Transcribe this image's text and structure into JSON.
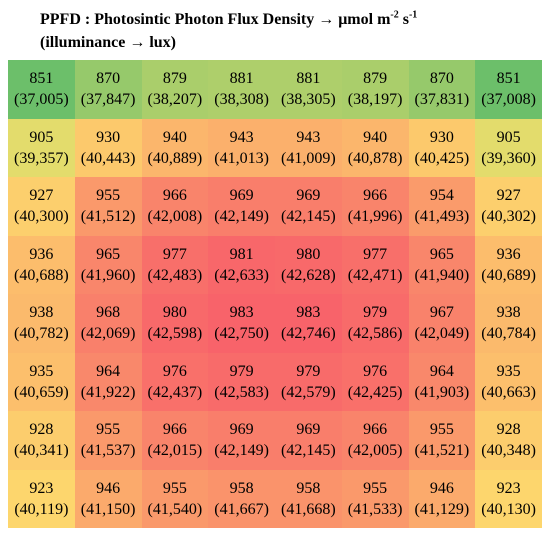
{
  "title": {
    "line1_prefix": "PPFD : Photosintic Photon Flux Density → μmol m",
    "line1_exp1": "-2",
    "line1_mid": " s",
    "line1_exp2": "-1",
    "line2": "(illuminance → lux)"
  },
  "chart_data": {
    "type": "heatmap",
    "rows": 8,
    "cols": 8,
    "color_scale": {
      "low": "#6cbf6a",
      "mid": "#fde26d",
      "high": "#f8636a",
      "min_value": 851,
      "max_value": 983
    },
    "ppfd": [
      [
        851,
        870,
        879,
        881,
        881,
        879,
        870,
        851
      ],
      [
        905,
        930,
        940,
        943,
        943,
        940,
        930,
        905
      ],
      [
        927,
        955,
        966,
        969,
        969,
        966,
        954,
        927
      ],
      [
        936,
        965,
        977,
        981,
        980,
        977,
        965,
        936
      ],
      [
        938,
        968,
        980,
        983,
        983,
        979,
        967,
        938
      ],
      [
        935,
        964,
        976,
        979,
        979,
        976,
        964,
        935
      ],
      [
        928,
        955,
        966,
        969,
        969,
        966,
        955,
        928
      ],
      [
        923,
        946,
        955,
        958,
        958,
        955,
        946,
        923
      ]
    ],
    "lux_labels": [
      [
        "(37,005)",
        "(37,847)",
        "(38,207)",
        "(38,308)",
        "(38,305)",
        "(38,197)",
        "(37,831)",
        "(37,008)"
      ],
      [
        "(39,357)",
        "(40,443)",
        "(40,889)",
        "(41,013)",
        "(41,009)",
        "(40,878)",
        "(40,425)",
        "(39,360)"
      ],
      [
        "(40,300)",
        "(41,512)",
        "(42,008)",
        "(42,149)",
        "(42,145)",
        "(41,996)",
        "(41,493)",
        "(40,302)"
      ],
      [
        "(40,688)",
        "(41,960)",
        "(42,483)",
        "(42,633)",
        "(42,628)",
        "(42,471)",
        "(41,940)",
        "(40,689)"
      ],
      [
        "(40,782)",
        "(42,069)",
        "(42,598)",
        "(42,750)",
        "(42,746)",
        "(42,586)",
        "(42,049)",
        "(40,784)"
      ],
      [
        "(40,659)",
        "(41,922)",
        "(42,437)",
        "(42,583)",
        "(42,579)",
        "(42,425)",
        "(41,903)",
        "(40,663)"
      ],
      [
        "(40,341)",
        "(41,537)",
        "(42,015)",
        "(42,149)",
        "(42,145)",
        "(42,005)",
        "(41,521)",
        "(40,348)"
      ],
      [
        "(40,119)",
        "(41,150)",
        "(41,540)",
        "(41,667)",
        "(41,668)",
        "(41,533)",
        "(41,129)",
        "(40,130)"
      ]
    ]
  }
}
